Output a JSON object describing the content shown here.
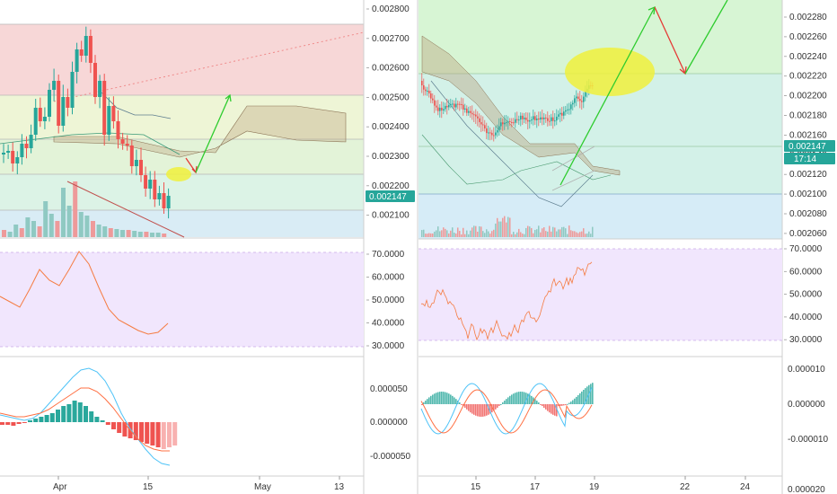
{
  "colors": {
    "up": "#26a69a",
    "down": "#ef5350",
    "rsi_line": "#f57c42",
    "macd_line": "#4fc3f7",
    "signal_line": "#ff7043",
    "rsi_band": "#f1e6fd",
    "price_tag": "#26a69a",
    "arrow_up": "#2ecc2e",
    "arrow_down": "#e53935",
    "target_ellipse": "#f0f03c"
  },
  "left_panel": {
    "price_axis": {
      "ticks": [
        "0.002800",
        "0.002700",
        "0.002600",
        "0.002500",
        "0.002400",
        "0.002300",
        "0.002200",
        "0.002100"
      ],
      "range": [
        0.00206,
        0.00281
      ],
      "last_price": "0.002147"
    },
    "rsi_axis": {
      "ticks": [
        "70.0000",
        "60.0000",
        "50.0000",
        "40.0000",
        "30.0000"
      ],
      "range": [
        27,
        74
      ]
    },
    "macd_axis": {
      "ticks": [
        "0.000050",
        "0.000000",
        "-0.000050"
      ],
      "range": [
        -6.5e-05,
        7.5e-05
      ]
    },
    "time_axis": {
      "ticks": [
        "Apr",
        "15",
        "May",
        "13"
      ]
    }
  },
  "right_panel": {
    "price_axis": {
      "ticks": [
        "0.002280",
        "0.002260",
        "0.002240",
        "0.002220",
        "0.002200",
        "0.002180",
        "0.002160",
        "0.002140",
        "0.002120",
        "0.002100",
        "0.002080",
        "0.002060"
      ],
      "range": [
        0.002058,
        0.0023
      ],
      "last_price": "0.002147",
      "countdown": "17:14"
    },
    "rsi_axis": {
      "ticks": [
        "70.0000",
        "60.0000",
        "50.0000",
        "40.0000",
        "30.0000"
      ],
      "range": [
        25,
        73
      ]
    },
    "macd_axis": {
      "ticks": [
        "0.000010",
        "0.000000",
        "-0.000010",
        "0.000020"
      ],
      "range": [
        -2.3e-05,
        1.3e-05
      ]
    },
    "time_axis": {
      "ticks": [
        "15",
        "17",
        "19",
        "22",
        "24"
      ]
    }
  }
}
